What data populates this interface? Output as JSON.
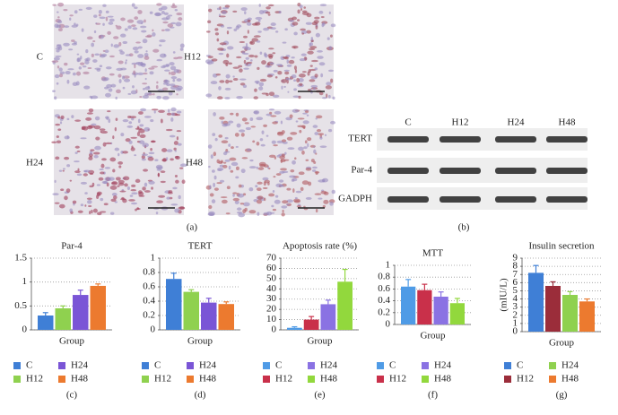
{
  "micrographs": {
    "labels": [
      "C",
      "H12",
      "H24",
      "H48"
    ],
    "panel": "(a)"
  },
  "blot": {
    "lanes": [
      "C",
      "H12",
      "H24",
      "H48"
    ],
    "rows": [
      "TERT",
      "Par-4",
      "GADPH"
    ],
    "panel": "(b)"
  },
  "chart_data": [
    {
      "type": "bar",
      "title": "Par-4",
      "xlabel": "Group",
      "panel": "(c)",
      "ylim": [
        0,
        1.5
      ],
      "yticks": [
        0,
        0.5,
        1,
        1.5
      ],
      "grid": true,
      "series": [
        {
          "name": "C",
          "color": "#3f7fd6",
          "values": [
            0.3
          ],
          "errors": [
            0.06
          ]
        },
        {
          "name": "H12",
          "color": "#8fd14f",
          "values": [
            0.45
          ],
          "errors": [
            0.05
          ]
        },
        {
          "name": "H24",
          "color": "#7a55d6",
          "values": [
            0.73
          ],
          "errors": [
            0.1
          ]
        },
        {
          "name": "H48",
          "color": "#ec7a2f",
          "values": [
            0.92
          ],
          "errors": [
            0.04
          ]
        }
      ]
    },
    {
      "type": "bar",
      "title": "TERT",
      "xlabel": "Group",
      "panel": "(d)",
      "ylim": [
        0,
        1
      ],
      "yticks": [
        0,
        0.2,
        0.4,
        0.6,
        0.8,
        1
      ],
      "grid": true,
      "series": [
        {
          "name": "C",
          "color": "#3f7fd6",
          "values": [
            0.71
          ],
          "errors": [
            0.08
          ]
        },
        {
          "name": "H12",
          "color": "#8fd14f",
          "values": [
            0.53
          ],
          "errors": [
            0.03
          ]
        },
        {
          "name": "H24",
          "color": "#7a55d6",
          "values": [
            0.38
          ],
          "errors": [
            0.06
          ]
        },
        {
          "name": "H48",
          "color": "#ec7a2f",
          "values": [
            0.36
          ],
          "errors": [
            0.03
          ]
        }
      ]
    },
    {
      "type": "bar",
      "title": "Apoptosis rate (%)",
      "xlabel": "Group",
      "panel": "(e)",
      "ylim": [
        0,
        70
      ],
      "yticks": [
        0,
        10,
        20,
        30,
        40,
        50,
        60,
        70
      ],
      "grid": true,
      "series": [
        {
          "name": "C",
          "color": "#4f9be6",
          "values": [
            2
          ],
          "errors": [
            1
          ]
        },
        {
          "name": "H12",
          "color": "#c9304a",
          "values": [
            10
          ],
          "errors": [
            3
          ]
        },
        {
          "name": "H24",
          "color": "#8a72e3",
          "values": [
            25
          ],
          "errors": [
            4
          ]
        },
        {
          "name": "H48",
          "color": "#92d83d",
          "values": [
            47
          ],
          "errors": [
            12
          ]
        }
      ]
    },
    {
      "type": "bar",
      "title": "MTT",
      "xlabel": "Group",
      "panel": "(f)",
      "ylim": [
        0,
        1
      ],
      "yticks": [
        0,
        0.2,
        0.4,
        0.6,
        0.8,
        1
      ],
      "grid": true,
      "series": [
        {
          "name": "C",
          "color": "#4f9be6",
          "values": [
            0.64
          ],
          "errors": [
            0.12
          ]
        },
        {
          "name": "H12",
          "color": "#c9304a",
          "values": [
            0.58
          ],
          "errors": [
            0.1
          ]
        },
        {
          "name": "H24",
          "color": "#8a72e3",
          "values": [
            0.47
          ],
          "errors": [
            0.08
          ]
        },
        {
          "name": "H48",
          "color": "#92d83d",
          "values": [
            0.36
          ],
          "errors": [
            0.08
          ]
        }
      ]
    },
    {
      "type": "bar",
      "title": "Insulin secretion",
      "ylabel": "(mIU/L)",
      "xlabel": "Group",
      "panel": "(g)",
      "ylim": [
        0,
        9
      ],
      "yticks": [
        0,
        1,
        2,
        3,
        4,
        5,
        6,
        7,
        8,
        9
      ],
      "grid": true,
      "series": [
        {
          "name": "C",
          "color": "#3f7fd6",
          "values": [
            7.2
          ],
          "errors": [
            0.9
          ]
        },
        {
          "name": "H12",
          "color": "#9b2d3a",
          "values": [
            5.6
          ],
          "errors": [
            0.5
          ]
        },
        {
          "name": "H24",
          "color": "#8fd14f",
          "values": [
            4.5
          ],
          "errors": [
            0.4
          ]
        },
        {
          "name": "H48",
          "color": "#ec7a2f",
          "values": [
            3.7
          ],
          "errors": [
            0.3
          ]
        }
      ]
    }
  ]
}
